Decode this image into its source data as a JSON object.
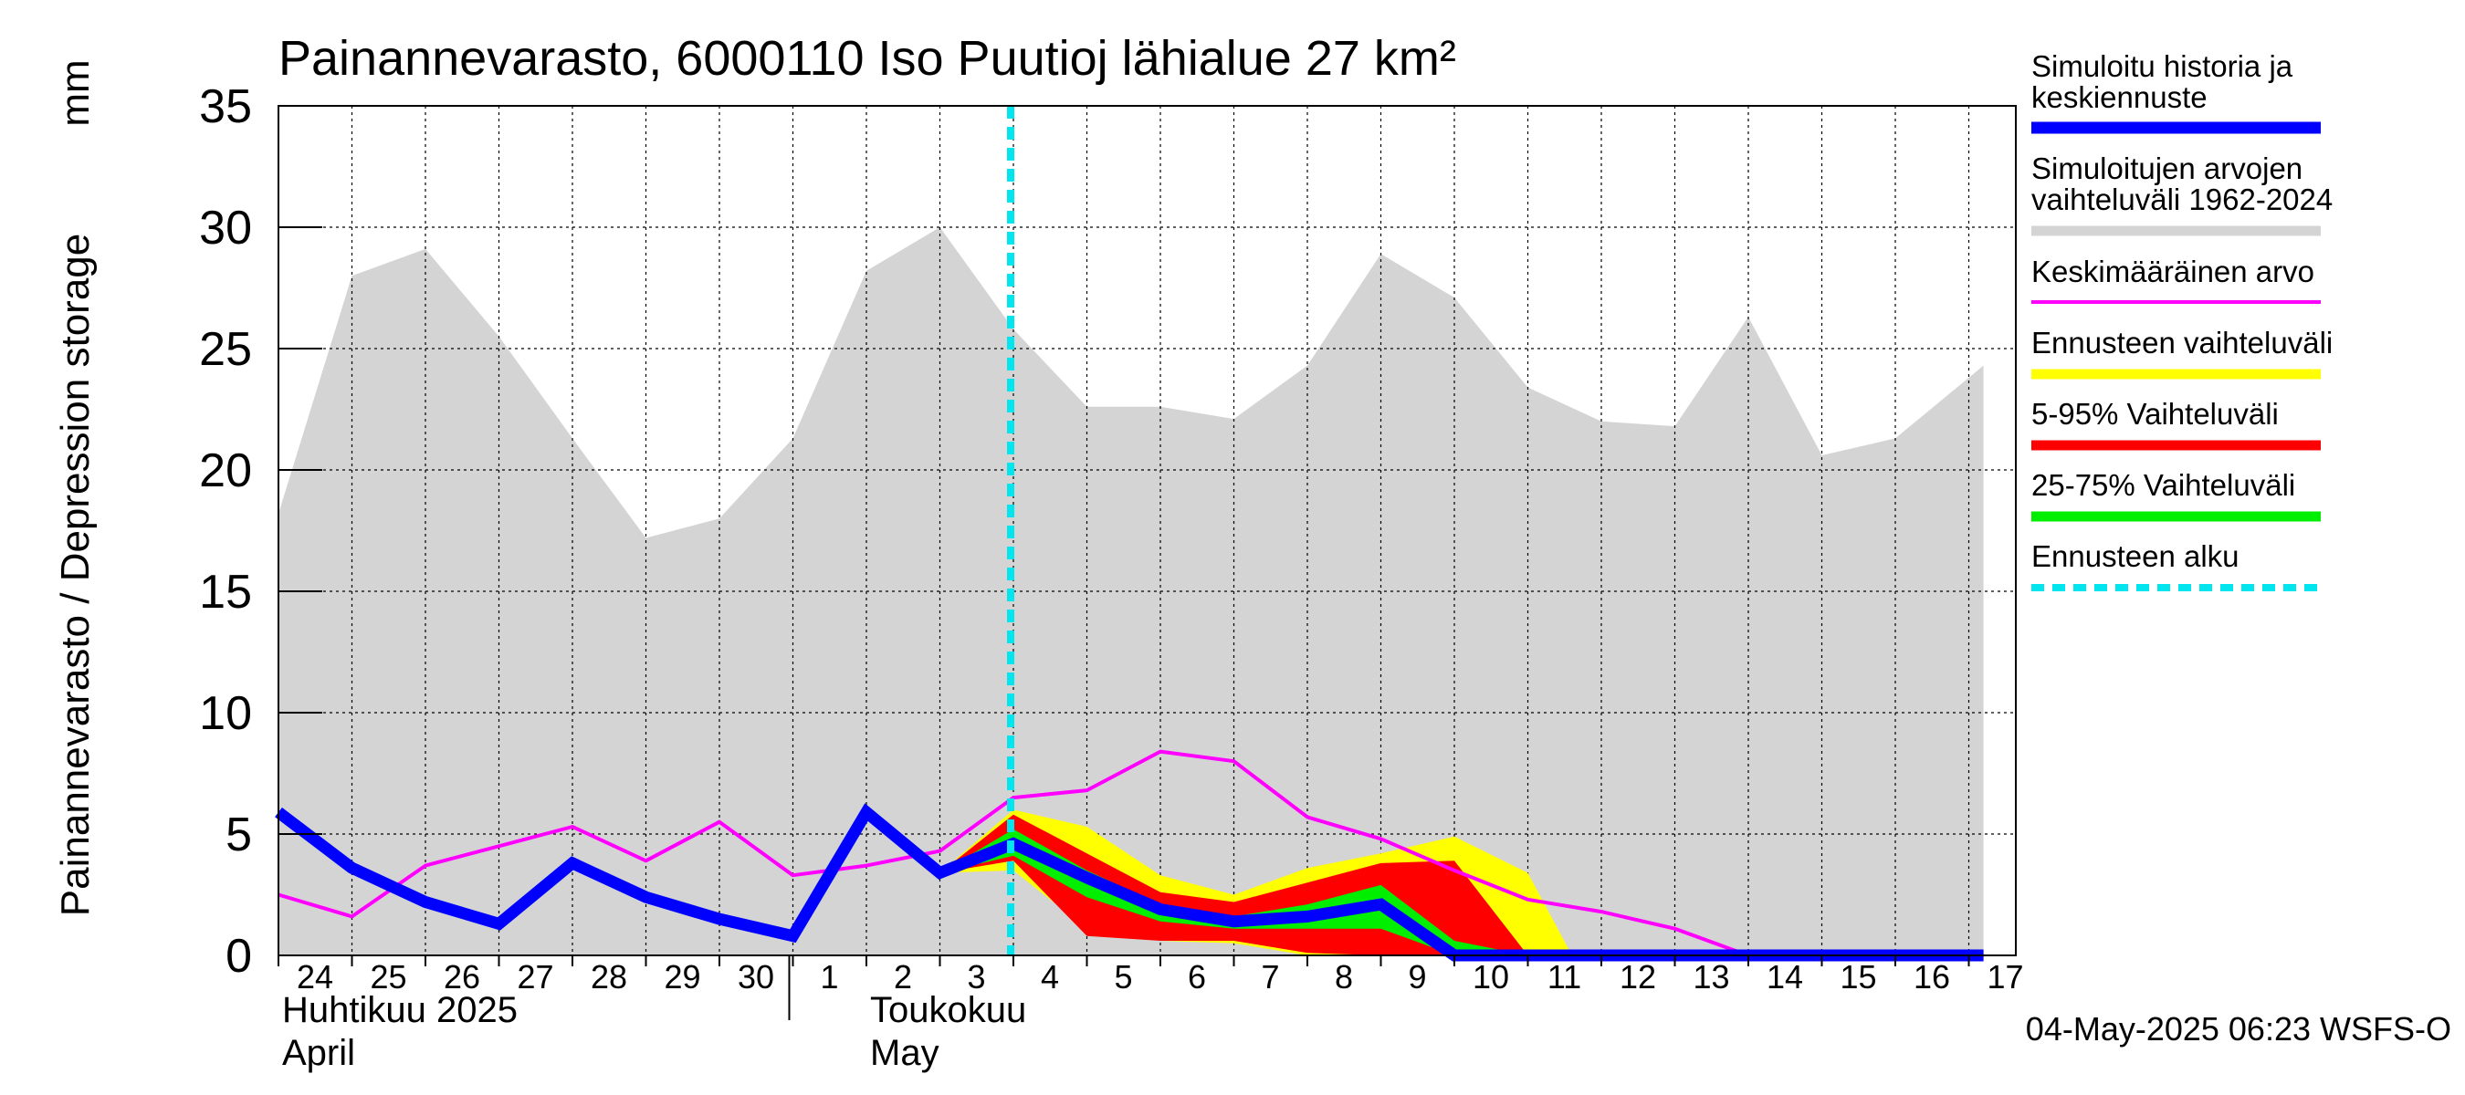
{
  "chart_data": {
    "type": "area",
    "title": "Painannevarasto, 6000110 Iso Puutioj lähialue 27 km²",
    "ylabel": "Painannevarasto / Depression storage",
    "yunit": "mm",
    "ylim": [
      0,
      35
    ],
    "yticks": [
      "0",
      "5",
      "10",
      "15",
      "20",
      "25",
      "30",
      "35"
    ],
    "grid": true,
    "legend_position": "right",
    "x_tick_labels": [
      "24",
      "25",
      "26",
      "27",
      "28",
      "29",
      "30",
      "1",
      "2",
      "3",
      "4",
      "5",
      "6",
      "7",
      "8",
      "9",
      "10",
      "11",
      "12",
      "13",
      "14",
      "15",
      "16",
      "17"
    ],
    "month_labels": [
      {
        "line1": "Huhtikuu  2025",
        "line2": "April",
        "at_day": "24"
      },
      {
        "line1": "Toukokuu",
        "line2": "May",
        "at_day": "2"
      }
    ],
    "forecast_start_day": "4",
    "timestamp": "04-May-2025 06:23 WSFS-O",
    "colors": {
      "history": "#0000ff",
      "range": "#d4d4d4",
      "mean": "#ff00ff",
      "forecast_range": "#ffff00",
      "p5_95": "#ff0000",
      "p25_75": "#00ee00",
      "forecast_start": "#00e5ee"
    },
    "legend": [
      {
        "key": "history",
        "label": [
          "Simuloitu historia ja",
          "keskiennuste"
        ],
        "style": "thick"
      },
      {
        "key": "range",
        "label": [
          "Simuloitujen arvojen",
          "vaihteluväli 1962-2024"
        ],
        "style": "medium"
      },
      {
        "key": "mean",
        "label": [
          "Keskimääräinen arvo"
        ],
        "style": "thin"
      },
      {
        "key": "forecast_range",
        "label": [
          "Ennusteen vaihteluväli"
        ],
        "style": "medium"
      },
      {
        "key": "p5_95",
        "label": [
          "5-95% Vaihteluväli"
        ],
        "style": "medium"
      },
      {
        "key": "p25_75",
        "label": [
          "25-75% Vaihteluväli"
        ],
        "style": "medium"
      },
      {
        "key": "forecast_start",
        "label": [
          "Ennusteen alku"
        ],
        "style": "dashed"
      }
    ],
    "series": [
      {
        "key": "range_max",
        "x": [
          0,
          1,
          2,
          3,
          4,
          5,
          6,
          7,
          8,
          9,
          10,
          11,
          12,
          13,
          14,
          15,
          16,
          17,
          18,
          19,
          20,
          21,
          22,
          23.2
        ],
        "values": [
          18.2,
          28,
          29.1,
          25.5,
          21.3,
          17.2,
          18,
          21.3,
          28.2,
          30,
          25.8,
          22.6,
          22.6,
          22.1,
          24.3,
          28.9,
          27.1,
          23.4,
          22,
          21.8,
          26.3,
          20.6,
          21.3,
          24.3
        ]
      },
      {
        "key": "history",
        "x": [
          0,
          1,
          2,
          3,
          4,
          5,
          6,
          7,
          8,
          9,
          10,
          11,
          12,
          13,
          14,
          15,
          16,
          17,
          18,
          19,
          20,
          21,
          22,
          23.2
        ],
        "values": [
          5.9,
          3.6,
          2.2,
          1.3,
          3.8,
          2.4,
          1.5,
          0.8,
          5.9,
          3.4,
          4.6,
          3.2,
          1.9,
          1.4,
          1.6,
          2.1,
          0,
          0,
          0,
          0,
          0,
          0,
          0,
          0
        ]
      },
      {
        "key": "mean",
        "x": [
          0,
          1,
          2,
          3,
          4,
          5,
          6,
          7,
          8,
          9,
          10,
          11,
          12,
          13,
          14,
          15,
          16,
          17,
          18,
          19,
          20,
          21,
          22,
          23.2
        ],
        "values": [
          2.5,
          1.6,
          3.7,
          4.5,
          5.3,
          3.9,
          5.5,
          3.3,
          3.7,
          4.3,
          6.5,
          6.8,
          8.4,
          8,
          5.7,
          4.8,
          3.5,
          2.3,
          1.8,
          1.1,
          0,
          0,
          0,
          0
        ]
      },
      {
        "key": "forecast_range",
        "x": [
          9,
          10,
          11,
          12,
          13,
          14,
          15,
          16,
          17,
          17.6
        ],
        "upper": [
          3.4,
          6,
          5.3,
          3.3,
          2.5,
          3.6,
          4.2,
          4.9,
          3.4,
          0
        ],
        "lower": [
          3.4,
          3.5,
          1.1,
          0.6,
          0.5,
          0,
          0,
          0,
          0,
          0
        ]
      },
      {
        "key": "p5_95",
        "x": [
          9,
          10,
          11,
          12,
          13,
          14,
          15,
          16,
          17
        ],
        "upper": [
          3.4,
          5.8,
          4.2,
          2.6,
          2.2,
          3,
          3.8,
          3.9,
          0
        ],
        "lower": [
          3.4,
          3.9,
          0.8,
          0.6,
          0.6,
          0.1,
          0,
          0,
          0
        ]
      },
      {
        "key": "p25_75",
        "x": [
          9,
          10,
          11,
          12,
          13,
          14,
          15,
          16,
          17
        ],
        "upper": [
          3.4,
          5.2,
          3.5,
          2.1,
          1.6,
          2.1,
          2.9,
          0.6,
          0
        ],
        "lower": [
          3.4,
          4.1,
          2.4,
          1.4,
          1.1,
          1.1,
          1.1,
          0,
          0
        ]
      }
    ]
  }
}
